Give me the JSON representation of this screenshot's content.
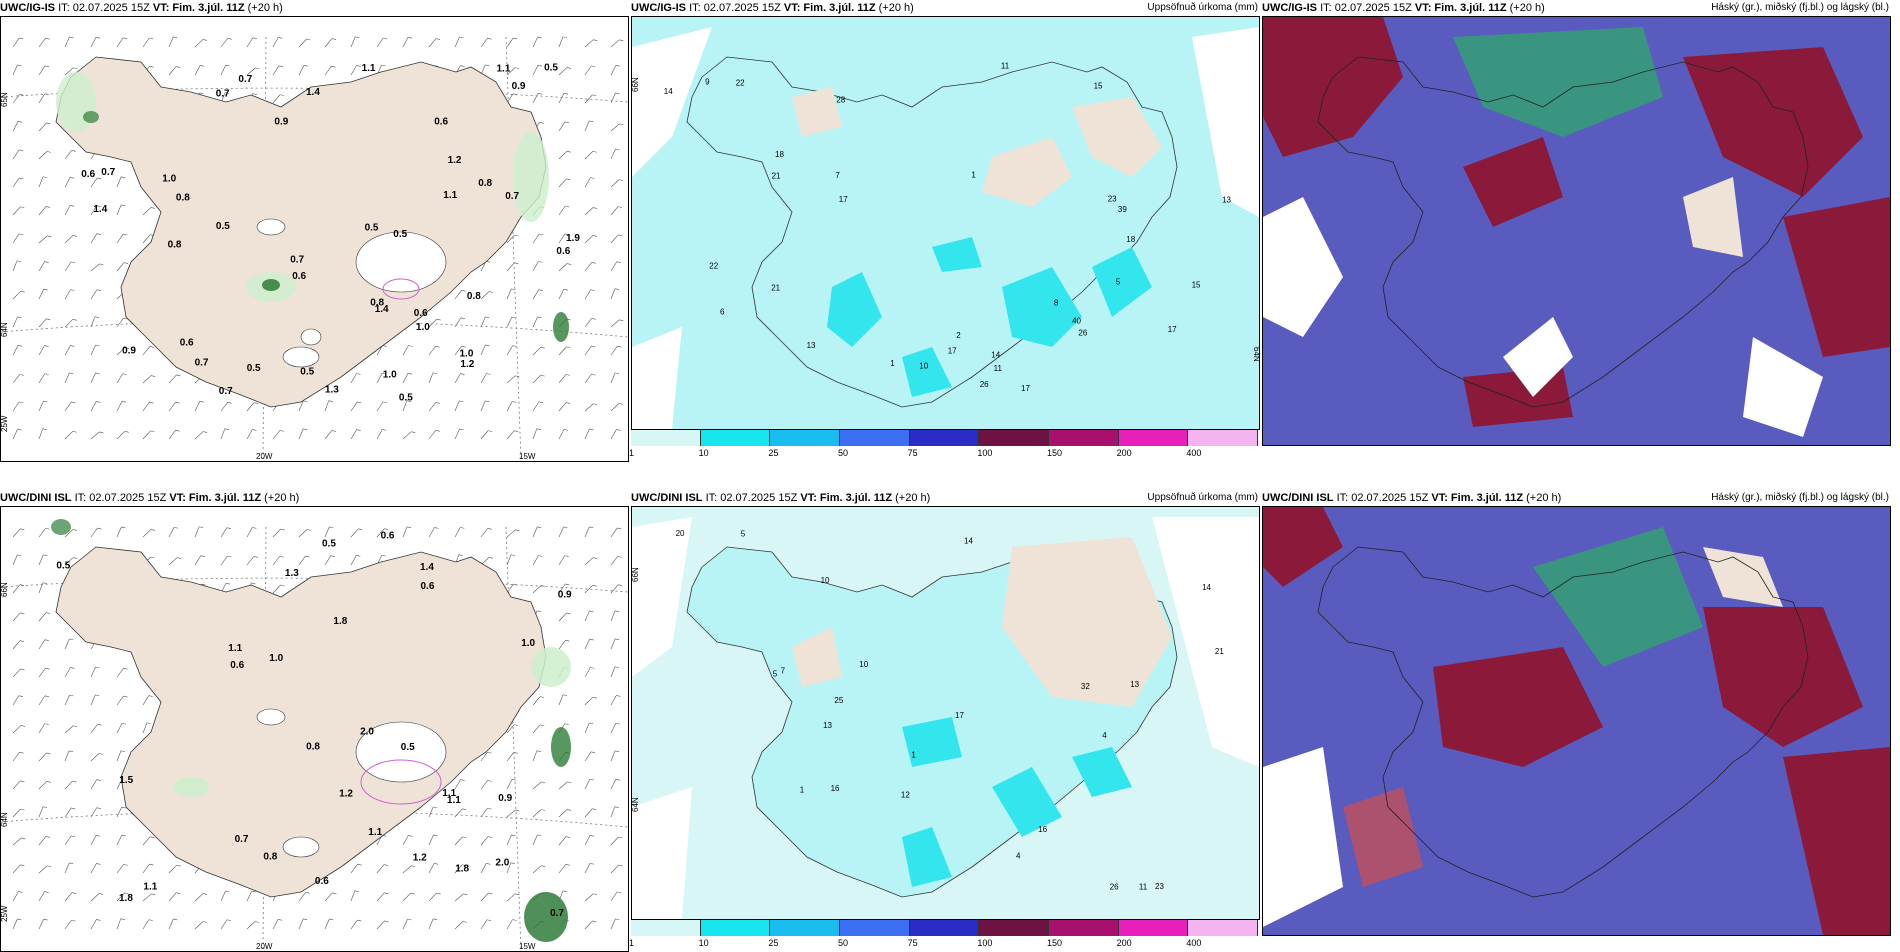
{
  "panels": [
    {
      "id": "p1",
      "model": "UWC/IG-IS",
      "it": "IT: 02.07.2025 15Z",
      "vt_label": "VT:",
      "vt": "Fim. 3.júl. 11Z",
      "lead": "(+20 h)",
      "right": ""
    },
    {
      "id": "p2",
      "model": "UWC/IG-IS",
      "it": "IT: 02.07.2025 15Z",
      "vt_label": "VT:",
      "vt": "Fim. 3.júl. 11Z",
      "lead": "(+20 h)",
      "right": "Uppsöfnuð úrkoma (mm)"
    },
    {
      "id": "p3",
      "model": "UWC/IG-IS",
      "it": "IT: 02.07.2025 15Z",
      "vt_label": "VT:",
      "vt": "Fim. 3.júl. 11Z",
      "lead": "(+20 h)",
      "right": "Háský (gr.), miðský (fj.bl.) og lágský (bl.)"
    },
    {
      "id": "p4",
      "model": "UWC/DINI ISL",
      "it": "IT: 02.07.2025 15Z",
      "vt_label": "VT:",
      "vt": "Fim. 3.júl. 11Z",
      "lead": "(+20 h)",
      "right": ""
    },
    {
      "id": "p5",
      "model": "UWC/DINI ISL",
      "it": "IT: 02.07.2025 15Z",
      "vt_label": "VT:",
      "vt": "Fim. 3.júl. 11Z",
      "lead": "(+20 h)",
      "right": "Uppsöfnuð úrkoma (mm)"
    },
    {
      "id": "p6",
      "model": "UWC/DINI ISL",
      "it": "IT: 02.07.2025 15Z",
      "vt_label": "VT:",
      "vt": "Fim. 3.júl. 11Z",
      "lead": "(+20 h)",
      "right": "Háský (gr.), miðský (fj.bl.) og lágský (bl.)"
    }
  ],
  "colors": {
    "land": "#efe3d7",
    "land_precip": "#efe3d7",
    "ocean_precip": "#b8f4f6",
    "precip_mid": "#33e6ee",
    "precip_low": "#d8f6f6",
    "wind_green_light": "#cdeecd",
    "wind_green_dark": "#2f7d3a",
    "cloud_low": "#5a5bbf",
    "cloud_mid": "#8b1a3a",
    "cloud_high": "#2fa86a",
    "hatch": "#d060d0"
  },
  "axis_labels": {
    "lon_20w": "20W",
    "lon_15w": "15W",
    "lat_65n": "65N",
    "lat_64n": "64N",
    "lat_66n": "66N",
    "lon_25w": "25W"
  },
  "colorbar": {
    "ticks": [
      "1",
      "10",
      "25",
      "50",
      "75",
      "100",
      "150",
      "200",
      "400"
    ],
    "colors": [
      "#d7f7f7",
      "#18e6ee",
      "#18bdee",
      "#3b6ef0",
      "#2a2ac4",
      "#6e1244",
      "#a8106e",
      "#e620b8",
      "#f4b4f0"
    ]
  },
  "wind_panel_values": {
    "p1": [
      "0.5",
      "0.7",
      "0.6",
      "1.0",
      "0.8",
      "1.0",
      "0.6",
      "0.5",
      "0.6",
      "0.7",
      "0.9",
      "0.6",
      "0.7",
      "0.8",
      "1.1",
      "1.1",
      "1.4",
      "0.9",
      "0.8",
      "0.7",
      "1.0",
      "1.4",
      "0.7",
      "1.2",
      "0.5",
      "1.2",
      "0.8",
      "0.8",
      "1.3",
      "0.9",
      "1.0",
      "0.5",
      "0.6",
      "0.5",
      "0.7",
      "0.5",
      "1.1",
      "0.7",
      "1.9",
      "0.6",
      "1.4",
      "0.5"
    ],
    "p4": [
      "1.8",
      "0.9",
      "2.0",
      "1.2",
      "1.3",
      "0.6",
      "2.0",
      "1.4",
      "1.8",
      "0.7",
      "0.7",
      "0.6",
      "0.8",
      "0.5",
      "1.2",
      "1.1",
      "1.1",
      "1.5",
      "0.8",
      "0.9",
      "0.5",
      "1.1",
      "0.6",
      "0.5",
      "1.1",
      "0.6",
      "1.0",
      "1.8",
      "1.0",
      "1.1"
    ]
  },
  "precip_panel_values": {
    "p2": [
      "1",
      "2",
      "1",
      "14",
      "13",
      "6",
      "17",
      "22",
      "23",
      "18",
      "21",
      "17",
      "10",
      "17",
      "15",
      "11",
      "40",
      "26",
      "15",
      "39",
      "22",
      "18",
      "21",
      "17",
      "14",
      "13",
      "11",
      "26",
      "28",
      "7",
      "9",
      "8",
      "5"
    ],
    "p5": [
      "1",
      "5",
      "5",
      "4",
      "23",
      "10",
      "12",
      "13",
      "16",
      "32",
      "13",
      "14",
      "20",
      "26",
      "25",
      "16",
      "17",
      "21",
      "14",
      "10",
      "11",
      "7",
      "4",
      "1"
    ]
  }
}
